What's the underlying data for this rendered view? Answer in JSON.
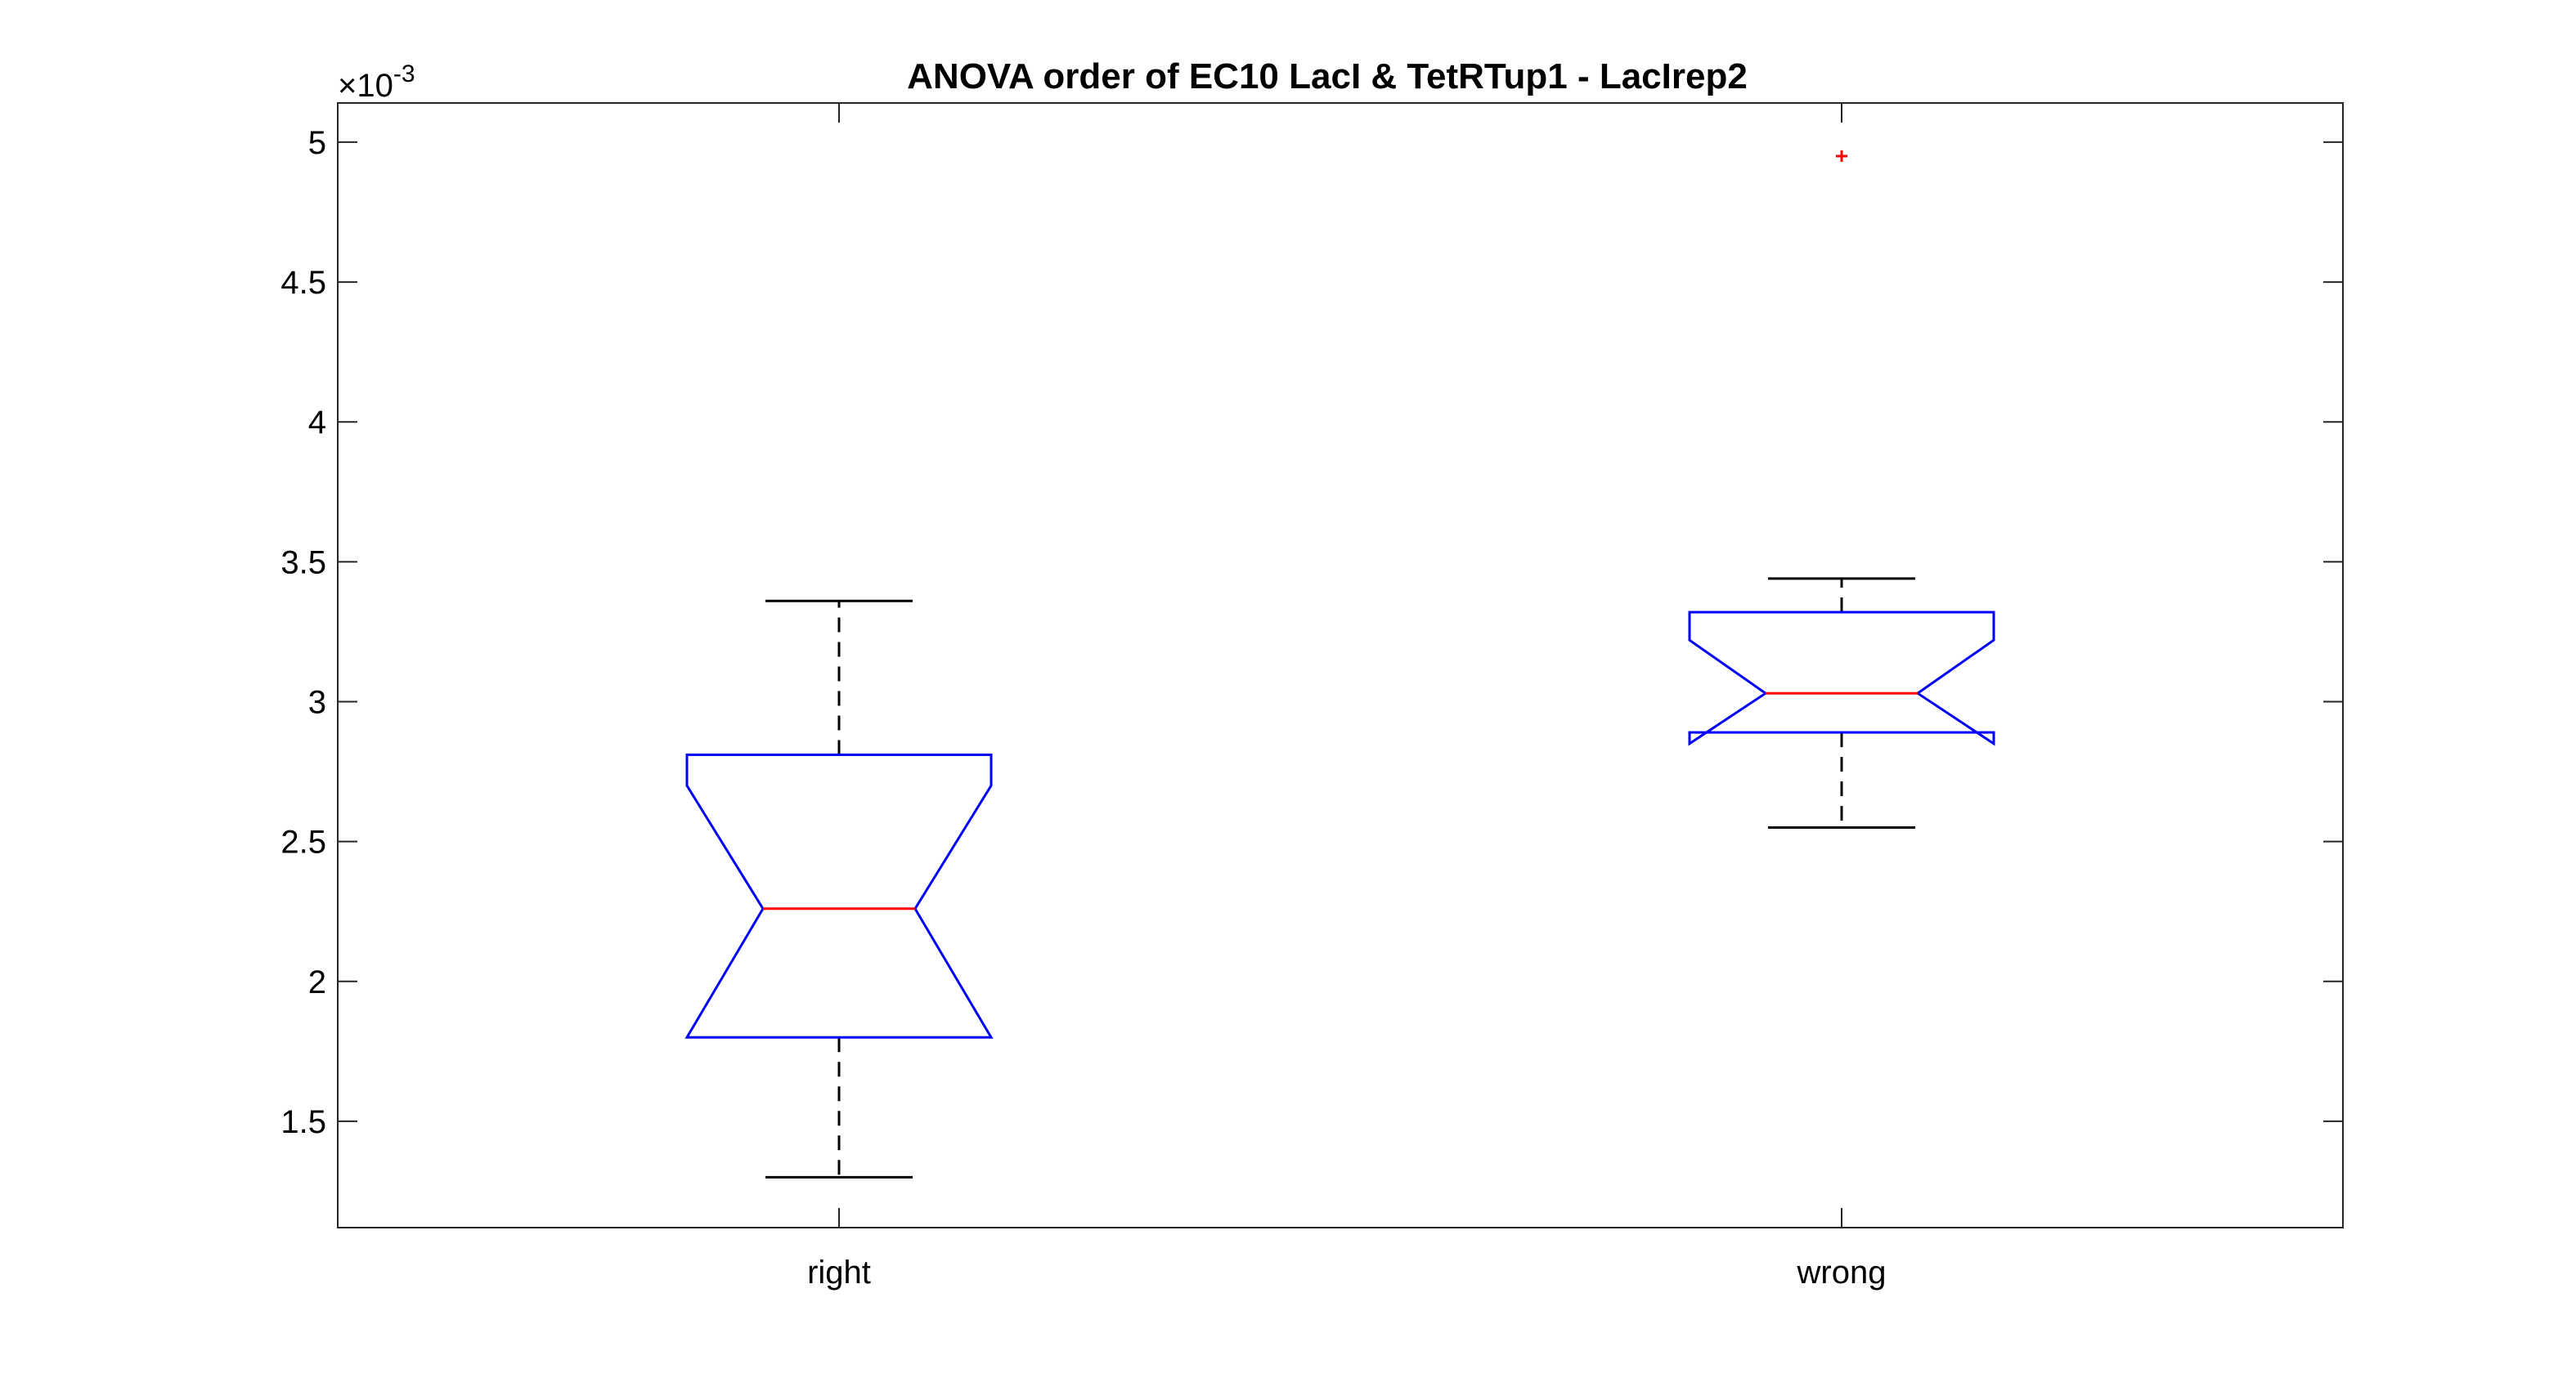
{
  "chart_data": {
    "type": "boxplot",
    "title": "ANOVA order of EC10 LacI & TetRTup1 - LacIrep2",
    "xlabel": "",
    "ylabel": "",
    "y_exponent_label": "×10",
    "y_exponent_power": "-3",
    "y_scale_factor": 0.001,
    "ylim": [
      1.12,
      5.14
    ],
    "yticks": [
      1.5,
      2,
      2.5,
      3,
      3.5,
      4,
      4.5,
      5
    ],
    "ytick_labels": [
      "1.5",
      "2",
      "2.5",
      "3",
      "3.5",
      "4",
      "4.5",
      "5"
    ],
    "categories": [
      "right",
      "wrong"
    ],
    "notched": true,
    "grid": false,
    "colors": {
      "box": "#0000ff",
      "median": "#ff0000",
      "whisker": "#000000",
      "outlier": "#ff0000",
      "axes": "#262626"
    },
    "boxes": [
      {
        "category": "right",
        "whisker_low": 1.3,
        "q1": 1.8,
        "median": 2.26,
        "q3": 2.81,
        "whisker_high": 3.36,
        "notch_low": 1.8,
        "notch_high": 2.7,
        "outliers": []
      },
      {
        "category": "wrong",
        "whisker_low": 2.55,
        "q1": 2.89,
        "median": 3.03,
        "q3": 3.32,
        "whisker_high": 3.44,
        "notch_low": 2.85,
        "notch_high": 3.22,
        "outliers": [
          4.95
        ]
      }
    ]
  }
}
